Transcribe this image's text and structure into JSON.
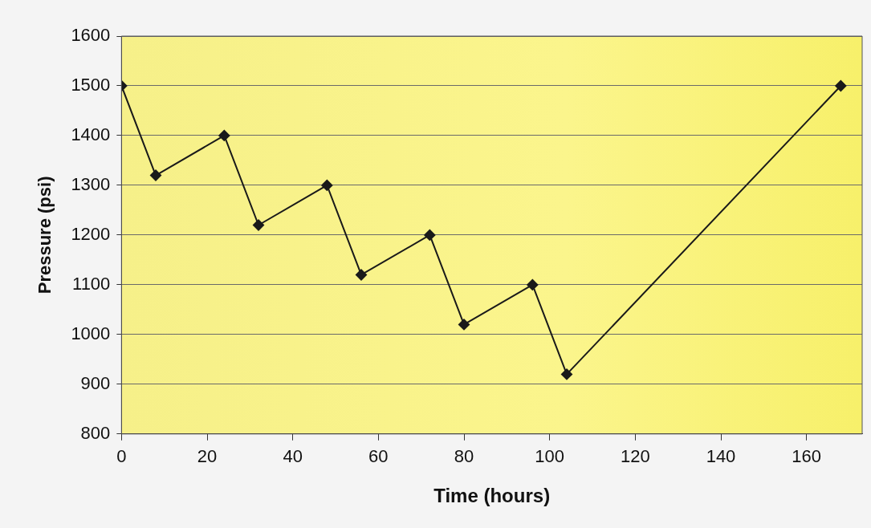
{
  "chart_data": {
    "type": "line",
    "xlabel": "Time (hours)",
    "ylabel": "Pressure (psi)",
    "x": [
      0,
      8,
      24,
      32,
      48,
      56,
      72,
      80,
      96,
      104,
      168
    ],
    "series": [
      {
        "color": "#1a1a1a",
        "values": [
          1500,
          1320,
          1400,
          1220,
          1300,
          1120,
          1200,
          1020,
          1100,
          920,
          1500
        ]
      }
    ],
    "xlim": [
      0,
      173
    ],
    "xticks": [
      0,
      20,
      40,
      60,
      80,
      100,
      120,
      140,
      160
    ],
    "ylim": [
      800,
      1600
    ],
    "yticks": [
      800,
      900,
      1000,
      1100,
      1200,
      1300,
      1400,
      1500,
      1600
    ],
    "grid": "y",
    "legend": false,
    "marker": "diamond",
    "line_style": "solid"
  }
}
